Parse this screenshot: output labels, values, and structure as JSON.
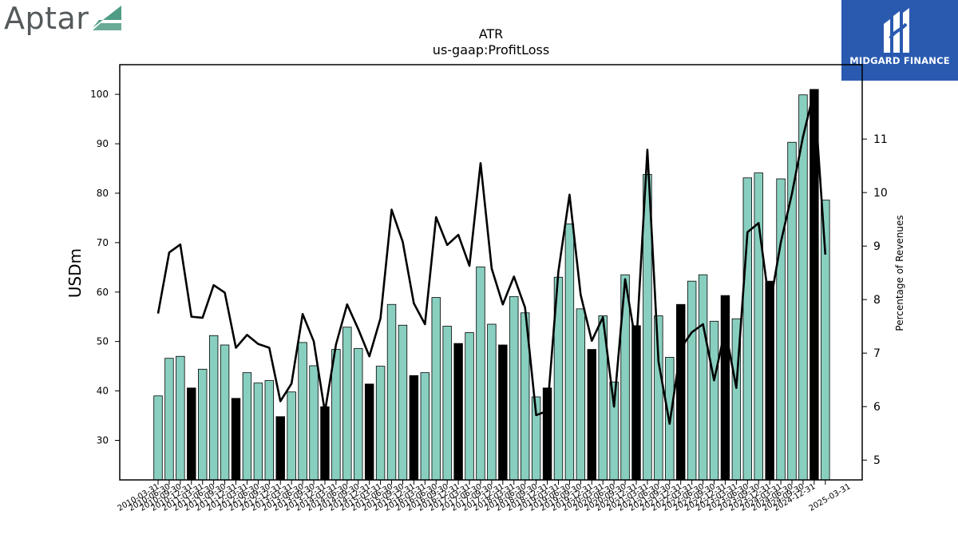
{
  "brand": {
    "left_logo_text": "Aptar",
    "right_logo_text": "MIDGARD FINANCE"
  },
  "colors": {
    "bar": "#88cfc0",
    "bar_highlight": "#000000",
    "line": "#000000",
    "logo_blue": "#2a5ab0",
    "logo_green": "#4f9c86"
  },
  "chart_data": {
    "type": "bar",
    "title": "ATR",
    "subtitle": "us-gaap:ProfitLoss",
    "ylabel": "USDm",
    "y2label": "Percentage of Revenues",
    "ylim": [
      22,
      106
    ],
    "y2lim": [
      4.63,
      12.39
    ],
    "yticks": [
      30,
      40,
      50,
      60,
      70,
      80,
      90,
      100
    ],
    "y2ticks": [
      5,
      6,
      7,
      8,
      9,
      10,
      11
    ],
    "x_label_first": "2010-03-31",
    "x_label_last": "2025-03-31",
    "x": [
      "2010-03-31",
      "2010-06-30",
      "2010-09-30",
      "2010-12-31",
      "2011-03-31",
      "2011-06-30",
      "2011-09-30",
      "2011-12-31",
      "2012-03-31",
      "2012-06-30",
      "2012-09-30",
      "2012-12-31",
      "2013-03-31",
      "2013-06-30",
      "2013-09-30",
      "2013-12-31",
      "2014-03-31",
      "2014-06-30",
      "2014-09-30",
      "2014-12-31",
      "2015-03-31",
      "2015-06-30",
      "2015-09-30",
      "2015-12-31",
      "2016-03-31",
      "2016-06-30",
      "2016-09-30",
      "2016-12-31",
      "2017-03-31",
      "2017-06-30",
      "2017-09-30",
      "2017-12-31",
      "2018-03-31",
      "2018-06-30",
      "2018-09-30",
      "2018-12-31",
      "2019-03-31",
      "2019-06-30",
      "2019-09-30",
      "2019-12-31",
      "2020-03-31",
      "2020-06-30",
      "2020-09-30",
      "2020-12-31",
      "2021-03-31",
      "2021-06-30",
      "2021-09-30",
      "2021-12-31",
      "2022-03-31",
      "2022-06-30",
      "2022-09-30",
      "2022-12-31",
      "2023-03-31",
      "2023-06-30",
      "2023-09-30",
      "2023-12-31",
      "2024-03-31",
      "2024-06-30",
      "2024-09-30",
      "2024-12-31",
      "2025-03-31"
    ],
    "series": [
      {
        "type": "bar",
        "axis": "left",
        "highlight_every": 4,
        "highlight_offset": 3,
        "values": [
          39,
          46.6,
          47,
          40.6,
          44.4,
          51.2,
          49.3,
          38.5,
          43.7,
          41.6,
          42.1,
          34.8,
          39.8,
          49.8,
          45.1,
          36.8,
          48.4,
          52.9,
          48.6,
          41.4,
          45,
          57.5,
          53.3,
          43.1,
          43.7,
          58.9,
          53.1,
          49.6,
          51.8,
          65.1,
          53.5,
          49.3,
          59.1,
          55.8,
          38.8,
          40.6,
          63,
          73.8,
          56.6,
          48.4,
          55.2,
          41.8,
          63.5,
          53.2,
          83.8,
          55.2,
          46.8,
          57.5,
          62.2,
          63.5,
          54.1,
          59.3,
          54.6,
          83.1,
          84.1,
          62.2,
          82.9,
          90.3,
          99.9,
          101,
          78.6
        ]
      },
      {
        "type": "line",
        "axis": "right",
        "values": [
          7.74,
          8.88,
          9.03,
          7.68,
          7.66,
          8.27,
          8.13,
          7.1,
          7.34,
          7.17,
          7.1,
          6.1,
          6.43,
          7.73,
          7.22,
          5.9,
          7.16,
          7.91,
          7.45,
          6.94,
          7.65,
          9.68,
          9.08,
          7.93,
          7.54,
          9.54,
          9.02,
          9.21,
          8.63,
          10.55,
          8.58,
          7.91,
          8.43,
          7.85,
          5.84,
          5.92,
          8.53,
          9.96,
          8.09,
          7.23,
          7.67,
          6.0,
          8.38,
          7.14,
          10.8,
          6.84,
          5.68,
          7.09,
          7.39,
          7.54,
          6.49,
          7.45,
          6.35,
          9.26,
          9.43,
          7.87,
          9.07,
          9.98,
          11.05,
          11.9,
          8.84
        ]
      }
    ]
  }
}
